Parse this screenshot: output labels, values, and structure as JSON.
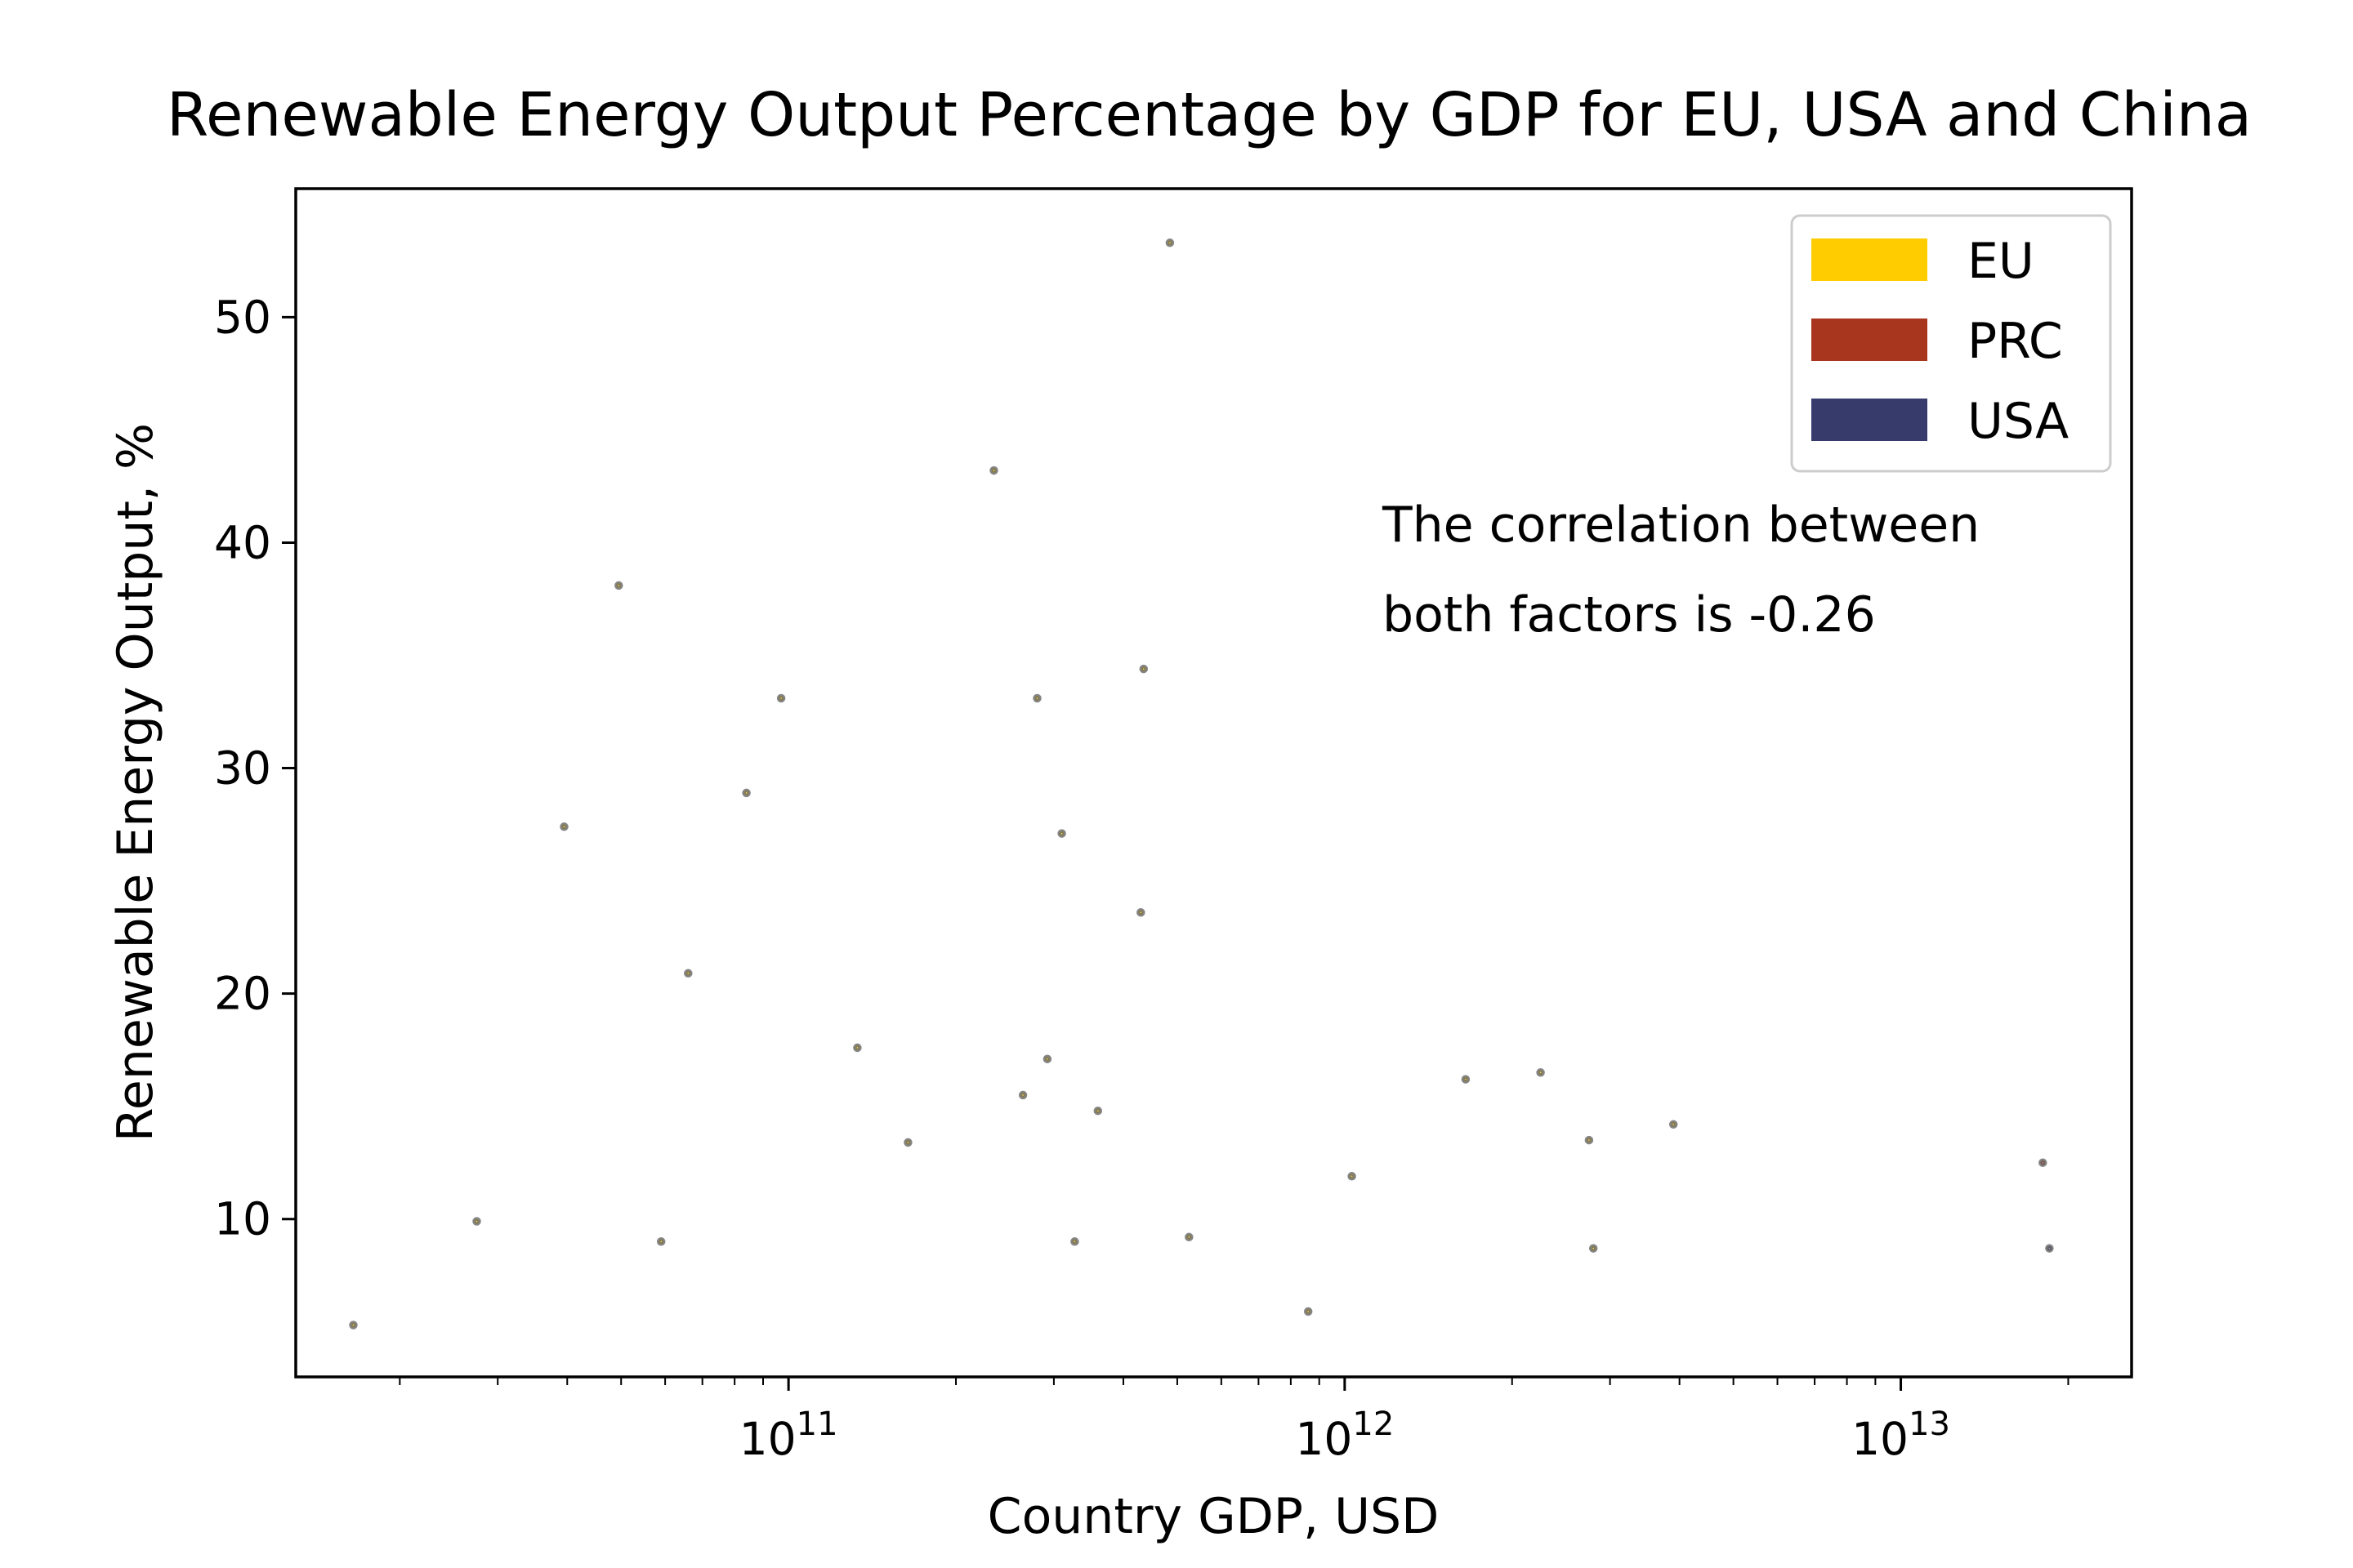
{
  "chart_data": {
    "type": "scatter",
    "title": "Renewable Energy Output Percentage by GDP for EU, USA and China",
    "xlabel": "Country GDP, USD",
    "ylabel": "Renewable Energy Output, %",
    "x_scale": "log",
    "xlim": [
      13000000000.0,
      26000000000000.0
    ],
    "ylim": [
      3,
      55.7
    ],
    "x_ticks": [
      {
        "value": 100000000000.0,
        "base": "10",
        "exp": "11"
      },
      {
        "value": 1000000000000.0,
        "base": "10",
        "exp": "12"
      },
      {
        "value": 10000000000000.0,
        "base": "10",
        "exp": "13"
      }
    ],
    "y_ticks": [
      10,
      20,
      30,
      40,
      50
    ],
    "grid": false,
    "legend_position": "top-right",
    "legend": [
      {
        "name": "EU",
        "color": "#ffcc00"
      },
      {
        "name": "PRC",
        "color": "#a8351e"
      },
      {
        "name": "USA",
        "color": "#363b6b"
      }
    ],
    "annotation": [
      "The correlation between",
      "both factors is -0.26"
    ],
    "marker_alpha": 0.5,
    "edge_color": "#333333",
    "series": [
      {
        "name": "EU",
        "color": "#ffcc00",
        "points": [
          {
            "x": 16500000000.0,
            "y": 5.3,
            "gdp": 16500000000.0
          },
          {
            "x": 27500000000.0,
            "y": 9.9,
            "gdp": 27500000000.0
          },
          {
            "x": 39500000000.0,
            "y": 27.4,
            "gdp": 39500000000.0
          },
          {
            "x": 49500000000.0,
            "y": 38.1,
            "gdp": 49500000000.0
          },
          {
            "x": 59000000000.0,
            "y": 9.0,
            "gdp": 59000000000.0
          },
          {
            "x": 66000000000.0,
            "y": 20.9,
            "gdp": 66000000000.0
          },
          {
            "x": 84000000000.0,
            "y": 28.9,
            "gdp": 84000000000.0
          },
          {
            "x": 97000000000.0,
            "y": 33.1,
            "gdp": 97000000000.0
          },
          {
            "x": 133000000000.0,
            "y": 17.6,
            "gdp": 133000000000.0
          },
          {
            "x": 164000000000.0,
            "y": 13.4,
            "gdp": 164000000000.0
          },
          {
            "x": 234000000000.0,
            "y": 43.2,
            "gdp": 234000000000.0
          },
          {
            "x": 264000000000.0,
            "y": 15.5,
            "gdp": 264000000000.0
          },
          {
            "x": 280000000000.0,
            "y": 33.1,
            "gdp": 280000000000.0
          },
          {
            "x": 292000000000.0,
            "y": 17.1,
            "gdp": 292000000000.0
          },
          {
            "x": 310000000000.0,
            "y": 27.1,
            "gdp": 310000000000.0
          },
          {
            "x": 327000000000.0,
            "y": 9.0,
            "gdp": 327000000000.0
          },
          {
            "x": 360000000000.0,
            "y": 14.8,
            "gdp": 360000000000.0
          },
          {
            "x": 430000000000.0,
            "y": 23.6,
            "gdp": 430000000000.0
          },
          {
            "x": 435000000000.0,
            "y": 34.4,
            "gdp": 435000000000.0
          },
          {
            "x": 485000000000.0,
            "y": 53.3,
            "gdp": 485000000000.0
          },
          {
            "x": 525000000000.0,
            "y": 9.2,
            "gdp": 525000000000.0
          },
          {
            "x": 860000000000.0,
            "y": 5.9,
            "gdp": 860000000000.0
          },
          {
            "x": 1030000000000.0,
            "y": 11.9,
            "gdp": 1030000000000.0
          },
          {
            "x": 1650000000000.0,
            "y": 16.2,
            "gdp": 1650000000000.0
          },
          {
            "x": 2250000000000.0,
            "y": 16.5,
            "gdp": 2250000000000.0
          },
          {
            "x": 2750000000000.0,
            "y": 13.5,
            "gdp": 2750000000000.0
          },
          {
            "x": 2800000000000.0,
            "y": 8.7,
            "gdp": 2800000000000.0
          },
          {
            "x": 3900000000000.0,
            "y": 14.2,
            "gdp": 3900000000000.0
          }
        ]
      },
      {
        "name": "PRC",
        "color": "#a8351e",
        "points": [
          {
            "x": 18000000000000.0,
            "y": 12.5,
            "gdp": 18000000000000.0
          }
        ]
      },
      {
        "name": "USA",
        "color": "#363b6b",
        "points": [
          {
            "x": 18500000000000.0,
            "y": 8.7,
            "gdp": 18500000000000.0
          }
        ]
      }
    ]
  }
}
